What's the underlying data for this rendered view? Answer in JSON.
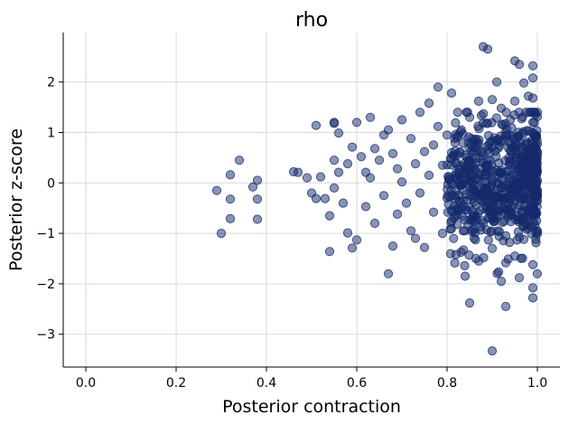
{
  "chart_data": {
    "type": "scatter",
    "title": "rho",
    "xlabel": "Posterior contraction",
    "ylabel": "Posterior z-score",
    "xlim": [
      -0.05,
      1.05
    ],
    "ylim": [
      -3.65,
      2.98
    ],
    "xticks": [
      0.0,
      0.2,
      0.4,
      0.6,
      0.8,
      1.0
    ],
    "xtick_labels": [
      "0.0",
      "0.2",
      "0.4",
      "0.6",
      "0.8",
      "1.0"
    ],
    "yticks": [
      -3,
      -2,
      -1,
      0,
      1,
      2
    ],
    "ytick_labels": [
      "−3",
      "−2",
      "−1",
      "0",
      "1",
      "2"
    ],
    "grid": true,
    "marker_color": "#132a6b",
    "marker_alpha": 0.5,
    "series": [
      {
        "points": [
          [
            0.29,
            -0.15
          ],
          [
            0.3,
            -1.0
          ],
          [
            0.32,
            0.16
          ],
          [
            0.32,
            -0.32
          ],
          [
            0.32,
            -0.71
          ],
          [
            0.34,
            0.45
          ],
          [
            0.37,
            -0.08
          ],
          [
            0.38,
            0.05
          ],
          [
            0.38,
            -0.32
          ],
          [
            0.38,
            -0.72
          ],
          [
            0.46,
            0.22
          ],
          [
            0.47,
            0.21
          ],
          [
            0.49,
            0.1
          ],
          [
            0.5,
            -0.2
          ],
          [
            0.51,
            1.14
          ],
          [
            0.51,
            -0.31
          ],
          [
            0.52,
            0.12
          ],
          [
            0.53,
            -0.31
          ],
          [
            0.54,
            -0.65
          ],
          [
            0.54,
            -1.36
          ],
          [
            0.55,
            1.18
          ],
          [
            0.55,
            1.2
          ],
          [
            0.55,
            0.45
          ],
          [
            0.55,
            -0.1
          ],
          [
            0.56,
            0.99
          ],
          [
            0.56,
            0.21
          ],
          [
            0.57,
            -0.4
          ],
          [
            0.58,
            -0.99
          ],
          [
            0.58,
            0.38
          ],
          [
            0.59,
            0.71
          ],
          [
            0.59,
            -1.29
          ],
          [
            0.6,
            1.2
          ],
          [
            0.6,
            -1.13
          ],
          [
            0.61,
            0.52
          ],
          [
            0.62,
            -0.47
          ],
          [
            0.62,
            0.21
          ],
          [
            0.63,
            0.1
          ],
          [
            0.63,
            1.3
          ],
          [
            0.64,
            0.68
          ],
          [
            0.64,
            -0.8
          ],
          [
            0.65,
            0.45
          ],
          [
            0.66,
            0.95
          ],
          [
            0.66,
            -0.25
          ],
          [
            0.67,
            1.05
          ],
          [
            0.67,
            -1.8
          ],
          [
            0.68,
            0.58
          ],
          [
            0.68,
            -1.25
          ],
          [
            0.69,
            0.28
          ],
          [
            0.69,
            -0.62
          ],
          [
            0.7,
            1.25
          ],
          [
            0.7,
            0.02
          ],
          [
            0.71,
            -0.4
          ],
          [
            0.72,
            0.88
          ],
          [
            0.72,
            -0.95
          ],
          [
            0.73,
            0.38
          ],
          [
            0.73,
            -1.1
          ],
          [
            0.74,
            1.4
          ],
          [
            0.74,
            -0.2
          ],
          [
            0.75,
            0.62
          ],
          [
            0.75,
            -1.28
          ],
          [
            0.76,
            1.58
          ],
          [
            0.76,
            0.15
          ],
          [
            0.77,
            0.75
          ],
          [
            0.77,
            -0.58
          ],
          [
            0.78,
            1.9
          ],
          [
            0.78,
            1.12
          ],
          [
            0.79,
            0.35
          ],
          [
            0.79,
            -1.0
          ],
          [
            0.8,
            0.95
          ],
          [
            0.8,
            -0.3
          ],
          [
            0.81,
            1.78
          ],
          [
            0.81,
            0.6
          ],
          [
            0.81,
            -0.75
          ],
          [
            0.82,
            0.2
          ],
          [
            0.82,
            -1.42
          ],
          [
            0.83,
            1.02
          ],
          [
            0.83,
            -0.05
          ],
          [
            0.84,
            -1.85
          ],
          [
            0.84,
            0.55
          ],
          [
            0.85,
            1.3
          ],
          [
            0.85,
            -0.48
          ],
          [
            0.85,
            -2.38
          ],
          [
            0.86,
            0.82
          ],
          [
            0.86,
            -1.1
          ],
          [
            0.87,
            1.62
          ],
          [
            0.87,
            0.05
          ],
          [
            0.87,
            -1.55
          ],
          [
            0.88,
            2.7
          ],
          [
            0.88,
            0.4
          ],
          [
            0.88,
            -0.8
          ],
          [
            0.89,
            2.65
          ],
          [
            0.89,
            1.18
          ],
          [
            0.89,
            -0.22
          ],
          [
            0.9,
            -3.33
          ],
          [
            0.9,
            1.65
          ],
          [
            0.9,
            0.7
          ],
          [
            0.9,
            -1.3
          ],
          [
            0.91,
            2.0
          ],
          [
            0.91,
            0.25
          ],
          [
            0.91,
            -0.65
          ],
          [
            0.92,
            1.48
          ],
          [
            0.92,
            -0.1
          ],
          [
            0.92,
            -1.95
          ],
          [
            0.93,
            0.92
          ],
          [
            0.93,
            -1.05
          ],
          [
            0.93,
            -2.45
          ],
          [
            0.94,
            1.25
          ],
          [
            0.94,
            0.45
          ],
          [
            0.94,
            -0.5
          ],
          [
            0.95,
            2.42
          ],
          [
            0.95,
            1.62
          ],
          [
            0.95,
            -1.45
          ],
          [
            0.96,
            2.35
          ],
          [
            0.96,
            0.82
          ],
          [
            0.96,
            -0.3
          ],
          [
            0.96,
            -1.88
          ],
          [
            0.97,
            1.98
          ],
          [
            0.97,
            0.15
          ],
          [
            0.97,
            -1.12
          ],
          [
            0.98,
            1.72
          ],
          [
            0.98,
            0.62
          ],
          [
            0.98,
            -0.72
          ],
          [
            0.99,
            2.32
          ],
          [
            0.99,
            2.08
          ],
          [
            0.99,
            1.68
          ],
          [
            0.99,
            1.2
          ],
          [
            0.99,
            -0.08
          ],
          [
            0.99,
            -1.62
          ],
          [
            0.99,
            -2.08
          ],
          [
            0.99,
            -2.28
          ]
        ]
      }
    ],
    "dense_cluster": {
      "x_range": [
        0.8,
        1.0
      ],
      "y_range": [
        -1.8,
        1.4
      ],
      "count": 650
    }
  }
}
